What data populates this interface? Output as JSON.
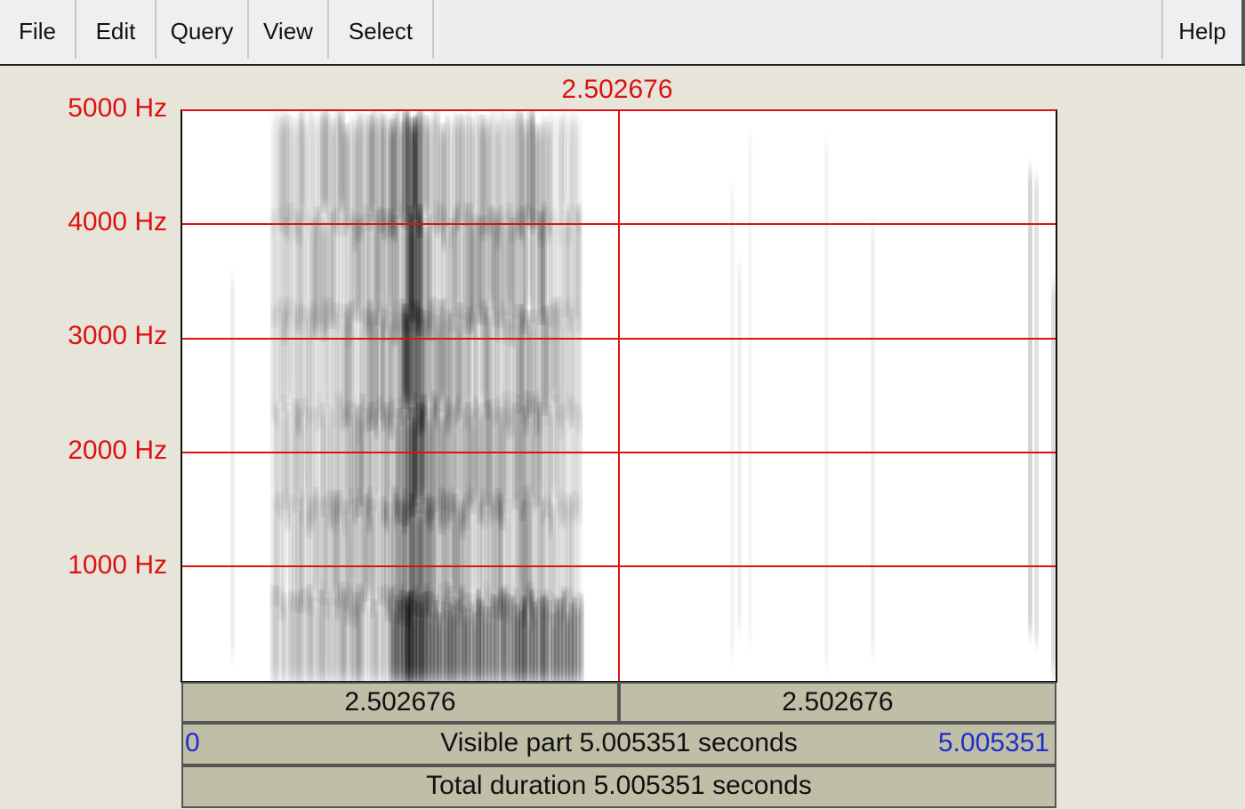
{
  "menu": {
    "items": [
      {
        "id": "file",
        "label": "File"
      },
      {
        "id": "edit",
        "label": "Edit"
      },
      {
        "id": "query",
        "label": "Query"
      },
      {
        "id": "view",
        "label": "View"
      },
      {
        "id": "select",
        "label": "Select"
      }
    ],
    "help": "Help"
  },
  "spectrogram": {
    "cursor_time_label": "2.502676",
    "frequency_labels": [
      "5000 Hz",
      "4000 Hz",
      "3000 Hz",
      "2000 Hz",
      "1000 Hz"
    ],
    "frequency_range_hz": [
      0,
      5000
    ],
    "visible_time_range_s": [
      0,
      5.005351
    ],
    "cursor_time_s": 2.502676,
    "colors": {
      "grid": "#dd1111",
      "label": "#dd1111",
      "time_bounds": "#1f2ccc",
      "panel": "#bfbea7"
    }
  },
  "panels": {
    "left_segment": "2.502676",
    "right_segment": "2.502676",
    "visible_start": "0",
    "visible_text": "Visible part 5.005351 seconds",
    "visible_end": "5.005351",
    "total_text": "Total duration 5.005351 seconds"
  }
}
